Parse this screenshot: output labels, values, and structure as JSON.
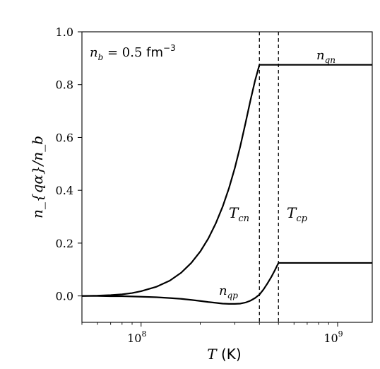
{
  "chart_data": {
    "type": "line",
    "title": "",
    "xlabel_var": "T",
    "xlabel_unit": "(K)",
    "ylabel": "n_{qα}/n_b",
    "xscale": "log",
    "xlim": [
      50000000,
      1500000000
    ],
    "ylim": [
      -0.1,
      1.0
    ],
    "yticks": [
      0.0,
      0.2,
      0.4,
      0.6,
      0.8,
      1.0
    ],
    "ytick_labels": [
      "0.0",
      "0.2",
      "0.4",
      "0.6",
      "0.8",
      "1.0"
    ],
    "xticks": [
      100000000,
      1000000000
    ],
    "xtick_labels": [
      {
        "base": "10",
        "exp": "8"
      },
      {
        "base": "10",
        "exp": "9"
      }
    ],
    "annotation_density": {
      "lhs": "n",
      "sub": "b",
      "rhs": "= 0.5",
      "unit": "fm",
      "unit_exp": "−3"
    },
    "vlines": [
      {
        "x": 400000000,
        "label": "T",
        "sub": "cn",
        "style": "dashed"
      },
      {
        "x": 500000000,
        "label": "T",
        "sub": "cp",
        "style": "dashed"
      }
    ],
    "series": [
      {
        "name": "n_qn",
        "label": "n",
        "sub": "qn",
        "x": [
          50000000,
          60000000,
          70000000,
          80000000,
          90000000,
          100000000,
          120000000,
          140000000,
          160000000,
          180000000,
          200000000,
          220000000,
          240000000,
          260000000,
          280000000,
          300000000,
          320000000,
          340000000,
          360000000,
          380000000,
          400000000,
          500000000,
          700000000,
          1000000000,
          1500000000
        ],
        "y": [
          0.0,
          0.001,
          0.003,
          0.006,
          0.011,
          0.018,
          0.035,
          0.058,
          0.088,
          0.125,
          0.168,
          0.218,
          0.275,
          0.338,
          0.408,
          0.485,
          0.568,
          0.655,
          0.74,
          0.815,
          0.875,
          0.875,
          0.875,
          0.875,
          0.875
        ]
      },
      {
        "name": "n_qp",
        "label": "n",
        "sub": "qp",
        "x": [
          50000000,
          60000000,
          70000000,
          80000000,
          90000000,
          100000000,
          120000000,
          140000000,
          160000000,
          180000000,
          200000000,
          220000000,
          240000000,
          260000000,
          280000000,
          300000000,
          320000000,
          340000000,
          360000000,
          380000000,
          400000000,
          420000000,
          440000000,
          460000000,
          480000000,
          500000000,
          700000000,
          1000000000,
          1500000000
        ],
        "y": [
          0.0,
          0.0,
          -0.001,
          -0.001,
          -0.002,
          -0.003,
          -0.005,
          -0.008,
          -0.011,
          -0.015,
          -0.019,
          -0.023,
          -0.026,
          -0.029,
          -0.03,
          -0.03,
          -0.029,
          -0.025,
          -0.018,
          -0.008,
          0.005,
          0.025,
          0.048,
          0.072,
          0.098,
          0.125,
          0.125,
          0.125,
          0.125
        ]
      }
    ]
  }
}
